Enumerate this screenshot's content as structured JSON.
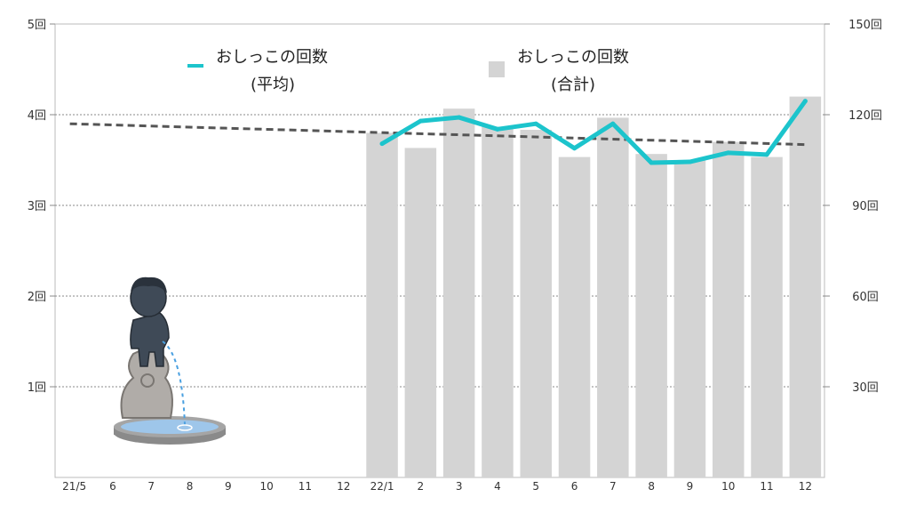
{
  "chart_data": {
    "type": "bar+line",
    "categories": [
      "21/5",
      "6",
      "7",
      "8",
      "9",
      "10",
      "11",
      "12",
      "22/1",
      "2",
      "3",
      "4",
      "5",
      "6",
      "7",
      "8",
      "9",
      "10",
      "11",
      "12"
    ],
    "series": [
      {
        "name": "おしっこの回数(合計)",
        "type": "bar",
        "axis": "right",
        "color": "#d4d4d4",
        "values": [
          null,
          null,
          null,
          null,
          null,
          null,
          null,
          null,
          114,
          109,
          122,
          116,
          115,
          106,
          119,
          107,
          105,
          111,
          106,
          126
        ]
      },
      {
        "name": "おしっこの回数(平均)",
        "type": "line",
        "axis": "left",
        "color": "#1cc4cc",
        "values": [
          null,
          null,
          null,
          null,
          null,
          null,
          null,
          null,
          3.68,
          3.93,
          3.97,
          3.84,
          3.9,
          3.63,
          3.9,
          3.47,
          3.48,
          3.58,
          3.56,
          4.15
        ]
      },
      {
        "name": "trend",
        "type": "line",
        "style": "dashed",
        "axis": "left",
        "color": "#555555",
        "start": 3.9,
        "end": 3.67
      }
    ],
    "y_left": {
      "ticks": [
        "1回",
        "2回",
        "3回",
        "4回",
        "5回"
      ],
      "tick_values": [
        1,
        2,
        3,
        4,
        5
      ],
      "range": [
        0,
        5
      ]
    },
    "y_right": {
      "ticks": [
        "30回",
        "60回",
        "90回",
        "120回",
        "150回"
      ],
      "tick_values": [
        30,
        60,
        90,
        120,
        150
      ],
      "range": [
        0,
        150
      ]
    },
    "grid": true
  },
  "legend": {
    "avg_line1": "おしっこの回数",
    "avg_line2": "(平均)",
    "total_line1": "おしっこの回数",
    "total_line2": "(合計)"
  },
  "colors": {
    "avg_line": "#1cc4cc",
    "bars": "#d4d4d4",
    "trend": "#555555",
    "plot_border": "#bbbbbb",
    "grid": "#888888"
  },
  "illustration": "manneken-pis-statue-fountain"
}
